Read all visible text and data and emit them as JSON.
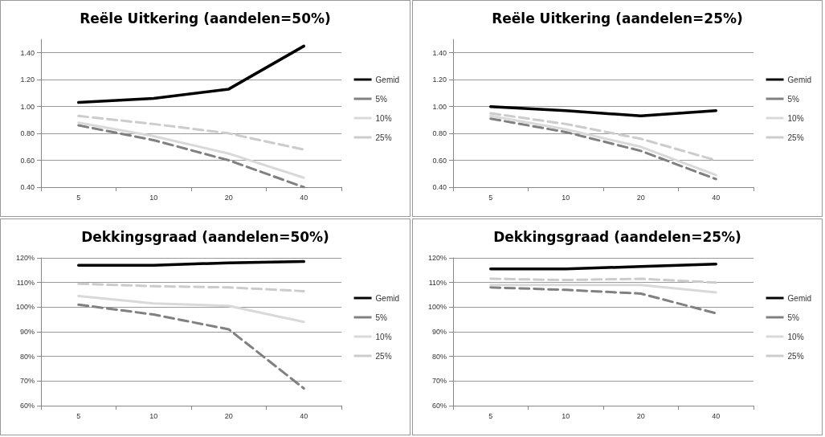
{
  "chart_data": [
    {
      "type": "line",
      "title": "Reële Uitkering (aandelen=50%)",
      "categories": [
        "5",
        "10",
        "20",
        "40"
      ],
      "ylim": [
        0.4,
        1.5
      ],
      "yticks": [
        {
          "value": 0.4,
          "label": "0.40"
        },
        {
          "value": 0.6,
          "label": "0.60"
        },
        {
          "value": 0.8,
          "label": "0.80"
        },
        {
          "value": 1.0,
          "label": "1.00"
        },
        {
          "value": 1.2,
          "label": "1.20"
        },
        {
          "value": 1.4,
          "label": "1.40"
        }
      ],
      "grid": "y",
      "legend": "right",
      "marker": "none",
      "series": [
        {
          "name": "Gemid",
          "color": "#000000",
          "line_style": "solid",
          "values": [
            1.03,
            1.06,
            1.13,
            1.45
          ]
        },
        {
          "name": "5%",
          "color": "#808080",
          "line_style": "dashed",
          "values": [
            0.86,
            0.75,
            0.6,
            0.4
          ]
        },
        {
          "name": "10%",
          "color": "#d9d9d9",
          "line_style": "solid",
          "values": [
            0.88,
            0.78,
            0.65,
            0.47
          ]
        },
        {
          "name": "25%",
          "color": "#cccccc",
          "line_style": "dashed",
          "values": [
            0.93,
            0.87,
            0.8,
            0.68
          ]
        }
      ]
    },
    {
      "type": "line",
      "title": "Reële Uitkering (aandelen=25%)",
      "categories": [
        "5",
        "10",
        "20",
        "40"
      ],
      "ylim": [
        0.4,
        1.5
      ],
      "yticks": [
        {
          "value": 0.4,
          "label": "0.40"
        },
        {
          "value": 0.6,
          "label": "0.60"
        },
        {
          "value": 0.8,
          "label": "0.80"
        },
        {
          "value": 1.0,
          "label": "1.00"
        },
        {
          "value": 1.2,
          "label": "1.20"
        },
        {
          "value": 1.4,
          "label": "1.40"
        }
      ],
      "grid": "y",
      "legend": "right",
      "marker": "none",
      "series": [
        {
          "name": "Gemid",
          "color": "#000000",
          "line_style": "solid",
          "values": [
            1.0,
            0.97,
            0.93,
            0.97
          ]
        },
        {
          "name": "5%",
          "color": "#808080",
          "line_style": "dashed",
          "values": [
            0.91,
            0.81,
            0.67,
            0.46
          ]
        },
        {
          "name": "10%",
          "color": "#d9d9d9",
          "line_style": "solid",
          "values": [
            0.93,
            0.83,
            0.7,
            0.49
          ]
        },
        {
          "name": "25%",
          "color": "#cccccc",
          "line_style": "dashed",
          "values": [
            0.95,
            0.87,
            0.76,
            0.6
          ]
        }
      ]
    },
    {
      "type": "line",
      "title": "Dekkingsgraad (aandelen=50%)",
      "categories": [
        "5",
        "10",
        "20",
        "40"
      ],
      "ylim": [
        60,
        120
      ],
      "yticks": [
        {
          "value": 60,
          "label": "60%"
        },
        {
          "value": 70,
          "label": "70%"
        },
        {
          "value": 80,
          "label": "80%"
        },
        {
          "value": 90,
          "label": "90%"
        },
        {
          "value": 100,
          "label": "100%"
        },
        {
          "value": 110,
          "label": "110%"
        },
        {
          "value": 120,
          "label": "120%"
        }
      ],
      "grid": "y",
      "legend": "right",
      "marker": "none",
      "series": [
        {
          "name": "Gemid",
          "color": "#000000",
          "line_style": "solid",
          "values": [
            117,
            117,
            118,
            118.5
          ]
        },
        {
          "name": "5%",
          "color": "#808080",
          "line_style": "dashed",
          "values": [
            101,
            97,
            91,
            67
          ]
        },
        {
          "name": "10%",
          "color": "#d9d9d9",
          "line_style": "solid",
          "values": [
            104.5,
            101.5,
            100.5,
            94
          ]
        },
        {
          "name": "25%",
          "color": "#cccccc",
          "line_style": "dashed",
          "values": [
            109.5,
            108.5,
            108,
            106.5
          ]
        }
      ]
    },
    {
      "type": "line",
      "title": "Dekkingsgraad (aandelen=25%)",
      "categories": [
        "5",
        "10",
        "20",
        "40"
      ],
      "ylim": [
        60,
        120
      ],
      "yticks": [
        {
          "value": 60,
          "label": "60%"
        },
        {
          "value": 70,
          "label": "70%"
        },
        {
          "value": 80,
          "label": "80%"
        },
        {
          "value": 90,
          "label": "90%"
        },
        {
          "value": 100,
          "label": "100%"
        },
        {
          "value": 110,
          "label": "110%"
        },
        {
          "value": 120,
          "label": "120%"
        }
      ],
      "grid": "y",
      "legend": "right",
      "marker": "none",
      "series": [
        {
          "name": "Gemid",
          "color": "#000000",
          "line_style": "solid",
          "values": [
            115.5,
            115.5,
            116.5,
            117.5
          ]
        },
        {
          "name": "5%",
          "color": "#808080",
          "line_style": "dashed",
          "values": [
            108,
            107,
            105.5,
            97.5
          ]
        },
        {
          "name": "10%",
          "color": "#d9d9d9",
          "line_style": "solid",
          "values": [
            109,
            109,
            109,
            106
          ]
        },
        {
          "name": "25%",
          "color": "#cccccc",
          "line_style": "dashed",
          "values": [
            111.5,
            111,
            111.5,
            110
          ]
        }
      ]
    }
  ]
}
